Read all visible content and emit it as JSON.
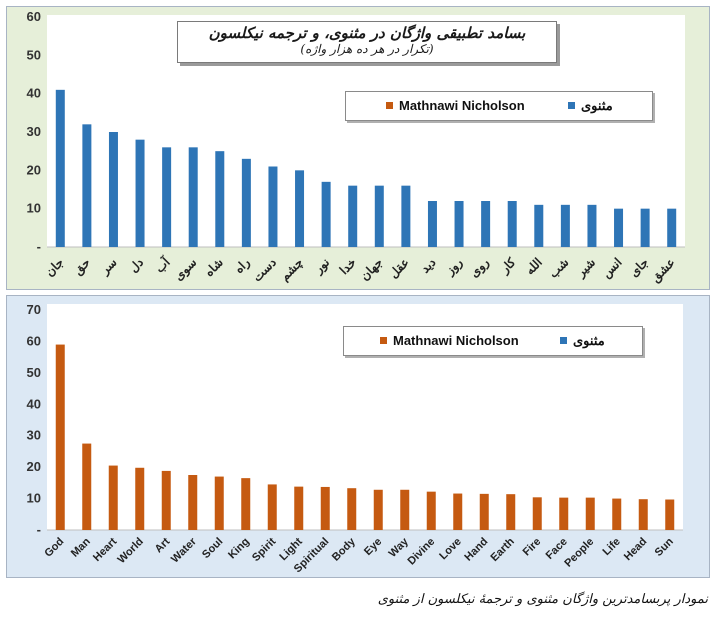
{
  "chart_data": [
    {
      "type": "bar",
      "title": "بسامد تطبیقی واژگان در مثنوی، و ترجمه نیکلسون",
      "subtitle": "(تکرار در هر ده هزار واژه)",
      "categories": [
        "جان",
        "حق",
        "سر",
        "دل",
        "آب",
        "سوی",
        "شاه",
        "راه",
        "دست",
        "چشم",
        "نور",
        "خدا",
        "جهان",
        "عقل",
        "دید",
        "روز",
        "روی",
        "کار",
        "الله",
        "شب",
        "شیر",
        "انس",
        "جای",
        "عشق"
      ],
      "series": [
        {
          "name": "مثنوی",
          "values": [
            41,
            32,
            30,
            28,
            26,
            26,
            25,
            23,
            21,
            20,
            17,
            16,
            16,
            16,
            12,
            12,
            12,
            12,
            11,
            11,
            11,
            10,
            10,
            10
          ]
        }
      ],
      "ylim": [
        0,
        60
      ],
      "yticks": [
        "-",
        "10",
        "20",
        "30",
        "40",
        "50",
        "60"
      ],
      "grid": false,
      "legend": {
        "placement": "top-right",
        "entries": [
          {
            "label": "Mathnawi Nicholson",
            "color": "#c55a11"
          },
          {
            "label": "مثنوی",
            "color": "#2e75b6"
          }
        ]
      },
      "bar_color": "#2e75b6"
    },
    {
      "type": "bar",
      "categories": [
        "God",
        "Man",
        "Heart",
        "World",
        "Art",
        "Water",
        "Soul",
        "King",
        "Spirit",
        "Light",
        "Spiritual",
        "Body",
        "Eye",
        "Way",
        "Divine",
        "Love",
        "Hand",
        "Earth",
        "Fire",
        "Face",
        "People",
        "Life",
        "Head",
        "Sun"
      ],
      "series": [
        {
          "name": "Mathnawi Nicholson",
          "values": [
            59,
            27.5,
            20.5,
            19.8,
            18.8,
            17.5,
            17,
            16.5,
            14.5,
            13.8,
            13.7,
            13.3,
            12.8,
            12.8,
            12.2,
            11.6,
            11.5,
            11.4,
            10.4,
            10.3,
            10.3,
            10,
            9.8,
            9.7
          ]
        }
      ],
      "ylim": [
        0,
        70
      ],
      "yticks": [
        "-",
        "10",
        "20",
        "30",
        "40",
        "50",
        "60",
        "70"
      ],
      "grid": false,
      "legend": {
        "placement": "top-right",
        "entries": [
          {
            "label": "Mathnawi Nicholson",
            "color": "#c55a11"
          },
          {
            "label": "مثنوی",
            "color": "#2e75b6"
          }
        ]
      },
      "bar_color": "#c55a11"
    }
  ],
  "caption": "نمودار پربسامدترین واژگان مثنوی و ترجمهٔ نیکلسون از مثنوی"
}
